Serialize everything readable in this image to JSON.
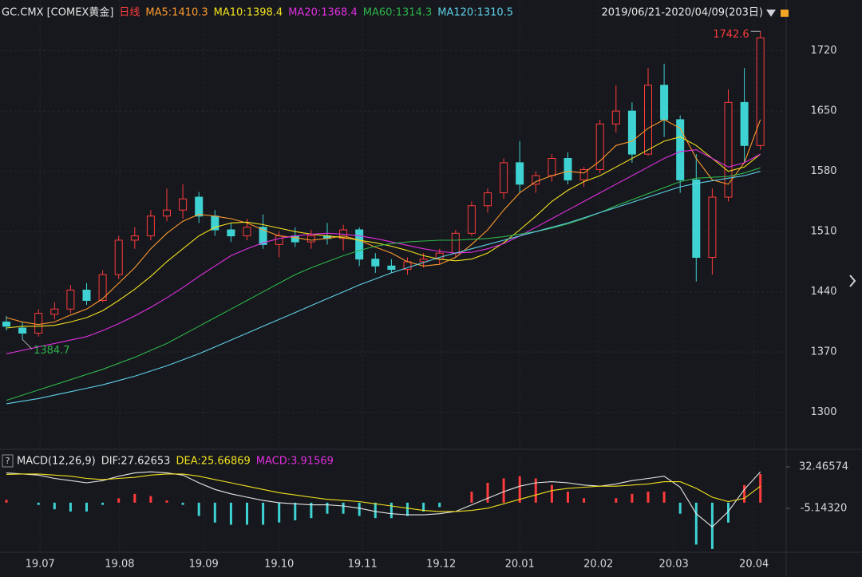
{
  "chart_data": [
    {
      "type": "candlestick",
      "title": "GC.CMX [COMEX黄金]",
      "subtitle": "日线",
      "date_range": "2019/06/21-2020/04/09(203日)",
      "up_color": "#ff3b3b",
      "down_color": "#3ed2d2",
      "grid": true,
      "ylim": [
        1258,
        1779
      ],
      "yticks": [
        1300,
        1370,
        1440,
        1510,
        1580,
        1650,
        1720
      ],
      "open": [
        1405,
        1398,
        1392,
        1414,
        1420,
        1442,
        1430,
        1460,
        1500,
        1505,
        1528,
        1535,
        1550,
        1528,
        1512,
        1505,
        1515,
        1495,
        1505,
        1498,
        1505,
        1502,
        1512,
        1478,
        1470,
        1466,
        1475,
        1478,
        1485,
        1508,
        1540,
        1555,
        1590,
        1565,
        1575,
        1595,
        1570,
        1582,
        1635,
        1650,
        1600,
        1680,
        1640,
        1570,
        1480,
        1550,
        1660,
        1610
      ],
      "high": [
        1412,
        1405,
        1420,
        1428,
        1448,
        1450,
        1465,
        1505,
        1515,
        1535,
        1560,
        1565,
        1556,
        1535,
        1520,
        1525,
        1530,
        1510,
        1515,
        1512,
        1520,
        1518,
        1515,
        1485,
        1478,
        1480,
        1485,
        1490,
        1512,
        1545,
        1560,
        1595,
        1615,
        1580,
        1600,
        1602,
        1585,
        1640,
        1680,
        1660,
        1700,
        1705,
        1645,
        1600,
        1560,
        1675,
        1700,
        1742.6
      ],
      "low": [
        1395,
        1384.7,
        1388,
        1408,
        1415,
        1425,
        1428,
        1455,
        1490,
        1500,
        1522,
        1525,
        1520,
        1505,
        1498,
        1500,
        1490,
        1480,
        1492,
        1490,
        1495,
        1488,
        1470,
        1462,
        1462,
        1460,
        1468,
        1472,
        1480,
        1505,
        1532,
        1548,
        1555,
        1555,
        1568,
        1565,
        1562,
        1578,
        1625,
        1590,
        1598,
        1620,
        1555,
        1452,
        1460,
        1545,
        1590,
        1605
      ],
      "close": [
        1400,
        1392,
        1415,
        1420,
        1442,
        1430,
        1460,
        1500,
        1505,
        1528,
        1535,
        1548,
        1528,
        1512,
        1505,
        1515,
        1495,
        1505,
        1498,
        1505,
        1502,
        1512,
        1478,
        1470,
        1466,
        1475,
        1478,
        1485,
        1508,
        1540,
        1555,
        1590,
        1565,
        1575,
        1595,
        1570,
        1582,
        1635,
        1650,
        1600,
        1680,
        1640,
        1570,
        1480,
        1550,
        1660,
        1610,
        1735
      ],
      "series": [
        {
          "name": "MA5:1410.3",
          "color": "#ff9a2e",
          "values": [
            1410,
            1405,
            1402,
            1405,
            1413,
            1420,
            1432,
            1450,
            1468,
            1490,
            1508,
            1522,
            1530,
            1528,
            1525,
            1520,
            1512,
            1505,
            1503,
            1500,
            1502,
            1505,
            1500,
            1492,
            1485,
            1475,
            1470,
            1472,
            1480,
            1495,
            1512,
            1535,
            1555,
            1568,
            1575,
            1580,
            1578,
            1592,
            1610,
            1615,
            1630,
            1640,
            1630,
            1595,
            1570,
            1565,
            1590,
            1640
          ]
        },
        {
          "name": "MA10:1398.4",
          "color": "#f2e01f",
          "values": [
            1398,
            1400,
            1400,
            1401,
            1405,
            1410,
            1418,
            1430,
            1443,
            1458,
            1475,
            1490,
            1505,
            1515,
            1520,
            1521,
            1518,
            1514,
            1510,
            1507,
            1505,
            1503,
            1500,
            1497,
            1493,
            1488,
            1482,
            1478,
            1476,
            1478,
            1485,
            1497,
            1512,
            1528,
            1545,
            1558,
            1568,
            1575,
            1585,
            1595,
            1605,
            1615,
            1620,
            1610,
            1595,
            1580,
            1585,
            1600
          ]
        },
        {
          "name": "MA20:1368.4",
          "color": "#e22fe0",
          "values": [
            1368,
            1372,
            1376,
            1380,
            1384,
            1388,
            1395,
            1403,
            1412,
            1422,
            1433,
            1445,
            1458,
            1470,
            1482,
            1490,
            1497,
            1502,
            1505,
            1507,
            1508,
            1507,
            1505,
            1502,
            1498,
            1494,
            1490,
            1487,
            1485,
            1486,
            1490,
            1496,
            1505,
            1515,
            1525,
            1535,
            1545,
            1555,
            1565,
            1575,
            1585,
            1595,
            1603,
            1605,
            1595,
            1585,
            1590,
            1600
          ]
        },
        {
          "name": "MA60:1314.3",
          "color": "#2fb34a",
          "values": [
            1314,
            1320,
            1326,
            1332,
            1338,
            1344,
            1350,
            1357,
            1364,
            1372,
            1380,
            1390,
            1400,
            1410,
            1420,
            1430,
            1440,
            1450,
            1460,
            1468,
            1475,
            1482,
            1488,
            1493,
            1496,
            1498,
            1499,
            1500,
            1500,
            1501,
            1502,
            1504,
            1507,
            1510,
            1514,
            1519,
            1525,
            1532,
            1540,
            1547,
            1554,
            1561,
            1568,
            1572,
            1573,
            1574,
            1578,
            1584
          ]
        },
        {
          "name": "MA120:1310.5",
          "color": "#5fd0e8",
          "values": [
            1310,
            1313,
            1316,
            1320,
            1324,
            1328,
            1332,
            1337,
            1342,
            1348,
            1354,
            1361,
            1368,
            1376,
            1384,
            1392,
            1400,
            1408,
            1416,
            1424,
            1432,
            1440,
            1448,
            1455,
            1462,
            1468,
            1474,
            1480,
            1485,
            1490,
            1495,
            1500,
            1505,
            1510,
            1515,
            1520,
            1526,
            1532,
            1538,
            1544,
            1550,
            1556,
            1562,
            1566,
            1569,
            1572,
            1575,
            1580
          ]
        }
      ]
    },
    {
      "type": "macd",
      "title": "MACD(12,26,9)",
      "ylim": [
        -43.5,
        45.5
      ],
      "yticks": [
        32.46574,
        {
          "value": -5.1432,
          "label": "-5.14320"
        }
      ],
      "xticks": [
        {
          "value": 2.1,
          "label": "19.07"
        },
        {
          "value": 7.06,
          "label": "19.08"
        },
        {
          "value": 12.3,
          "label": "19.09"
        },
        {
          "value": 17,
          "label": "19.10"
        },
        {
          "value": 22.2,
          "label": "19.11"
        },
        {
          "value": 27.1,
          "label": "19.12"
        },
        {
          "value": 32,
          "label": "20.01"
        },
        {
          "value": 36.9,
          "label": "20.02"
        },
        {
          "value": 41.6,
          "label": "20.03"
        },
        {
          "value": 46.6,
          "label": "20.04"
        }
      ],
      "series": [
        {
          "name": "DIF:27.62653",
          "color": "#e6e6e6",
          "values": [
            27,
            26,
            25,
            22,
            20,
            18,
            20,
            24,
            27,
            28,
            27,
            25,
            18,
            12,
            8,
            5,
            2,
            0,
            -1,
            -2,
            -2,
            -3,
            -5,
            -8,
            -10,
            -11,
            -11,
            -10,
            -8,
            -2,
            4,
            10,
            15,
            18,
            19,
            18,
            16,
            15,
            17,
            20,
            22,
            24,
            14,
            -10,
            -22,
            -8,
            12,
            28
          ]
        },
        {
          "name": "DEA:25.66869",
          "color": "#f2e01f",
          "values": [
            25.7,
            26,
            26,
            25,
            24,
            22,
            21,
            22,
            23,
            25,
            26,
            26,
            24,
            21,
            18,
            15,
            12,
            9,
            7,
            5,
            3,
            2,
            1,
            -1,
            -3,
            -5,
            -7,
            -8,
            -8,
            -7,
            -5,
            -1,
            3,
            7,
            11,
            13,
            14,
            15,
            15,
            16,
            17,
            19,
            19,
            13,
            5,
            1,
            4,
            15
          ]
        }
      ],
      "histogram": {
        "name": "MACD:3.91569",
        "color": "#e22fe0",
        "up_color": "#ff3b3b",
        "down_color": "#3ed2d2",
        "values": [
          2.6,
          0,
          -2,
          -6,
          -8,
          -8,
          -2,
          4,
          8,
          6,
          2,
          -2,
          -12,
          -18,
          -20,
          -20,
          -20,
          -18,
          -16,
          -14,
          -10,
          -10,
          -12,
          -14,
          -14,
          -12,
          -8,
          -4,
          0,
          10,
          18,
          22,
          24,
          22,
          16,
          10,
          4,
          0,
          4,
          8,
          10,
          10,
          -10,
          -38,
          -42,
          -18,
          16,
          26
        ]
      }
    }
  ]
}
